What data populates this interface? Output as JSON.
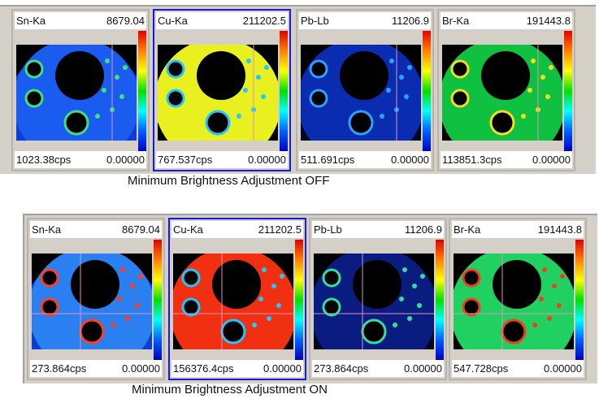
{
  "sections": [
    {
      "caption": "Minimum Brightness Adjustment OFF",
      "panels": [
        {
          "element": "Sn-Ka",
          "max": "8679.04",
          "cps": "1023.38cps",
          "min": "0.00000",
          "bg": "#0a3cd8",
          "disc": "#1a5cf0",
          "dots": "#40e080",
          "selected": false
        },
        {
          "element": "Cu-Ka",
          "max": "211202.5",
          "cps": "767.537cps",
          "min": "0.00000",
          "bg": "#000000",
          "disc": "#e8f020",
          "dots": "#20c8ff",
          "selected": true
        },
        {
          "element": "Pb-Lb",
          "max": "11206.9",
          "cps": "511.691cps",
          "min": "0.00000",
          "bg": "#000820",
          "disc": "#0a2cb0",
          "dots": "#30a0ff",
          "selected": false
        },
        {
          "element": "Br-Ka",
          "max": "191443.8",
          "cps": "113851.3cps",
          "min": "0.00000",
          "bg": "#000000",
          "disc": "#10c040",
          "dots": "#f0e020",
          "selected": false
        }
      ]
    },
    {
      "caption": "Minimum Brightness Adjustment ON",
      "panels": [
        {
          "element": "Sn-Ka",
          "max": "8679.04",
          "cps": "273.864cps",
          "min": "0.00000",
          "bg": "#0a3cd8",
          "disc": "#2a80f0",
          "dots": "#ff4020",
          "selected": false
        },
        {
          "element": "Cu-Ka",
          "max": "211202.5",
          "cps": "156376.4cps",
          "min": "0.00000",
          "bg": "#000000",
          "disc": "#f03010",
          "dots": "#20c8ff",
          "selected": true
        },
        {
          "element": "Pb-Lb",
          "max": "11206.9",
          "cps": "273.864cps",
          "min": "0.00000",
          "bg": "#000820",
          "disc": "#0a1c80",
          "dots": "#30e0a0",
          "selected": false
        },
        {
          "element": "Br-Ka",
          "max": "191443.8",
          "cps": "547.728cps",
          "min": "0.00000",
          "bg": "#000000",
          "disc": "#20d060",
          "dots": "#f04020",
          "selected": false
        }
      ]
    }
  ]
}
